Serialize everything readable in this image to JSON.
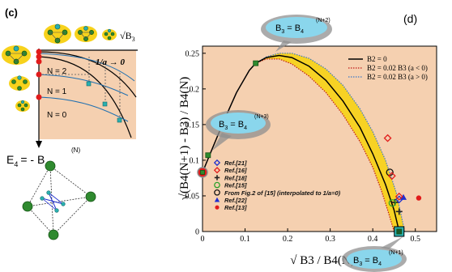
{
  "panel_c": {
    "label": "(c)",
    "top_label_root": "B",
    "top_label_sub": "3",
    "inv_a_label": "1/a → 0",
    "level_labels": [
      "N = 2",
      "N = 1",
      "N = 0"
    ],
    "energy_label": "E",
    "energy_sub": "4",
    "energy_rhs": "= - B",
    "energy_rhs_sub": "4",
    "energy_rhs_sup": "(N)"
  },
  "panel_d": {
    "label": "(d)",
    "callout_top": {
      "text": "B",
      "sub": "3",
      "eq": " = B",
      "sub2": "4",
      "sup": "(N+2)"
    },
    "callout_left": {
      "text": "B",
      "sub": "3",
      "eq": " = B",
      "sub2": "4",
      "sup": "(N+3)"
    },
    "callout_bottom": {
      "text": "B",
      "sub": "3",
      "eq": " = B",
      "sub2": "4",
      "sup": "(N+1)"
    }
  },
  "chart_data": {
    "type": "line",
    "xlabel": "√ B3 / B4(N)",
    "ylabel": "√(B4(N+1) - B3) / B4(N)",
    "xlim": [
      0,
      0.55
    ],
    "ylim": [
      0,
      0.26
    ],
    "xticks": [
      "0",
      "0.1",
      "0.2",
      "0.3",
      "0.4",
      "0.5"
    ],
    "yticks": [
      "0",
      "0.05",
      "0.1",
      "0.15",
      "0.2",
      "0.25"
    ],
    "legend_lines": [
      "B2 = 0",
      "B2 = 0.02 B3 (a < 0)",
      "B2 = 0.02 B3 (a > 0)"
    ],
    "curve_black": {
      "x": [
        0,
        0.02,
        0.05,
        0.08,
        0.11,
        0.125,
        0.15,
        0.18,
        0.21,
        0.25,
        0.29,
        0.33,
        0.37,
        0.4,
        0.43,
        0.45,
        0.462
      ],
      "y": [
        0.083,
        0.112,
        0.155,
        0.195,
        0.226,
        0.236,
        0.244,
        0.247,
        0.244,
        0.232,
        0.212,
        0.183,
        0.146,
        0.109,
        0.066,
        0.03,
        0.0
      ]
    },
    "curve_red_dotted": {
      "x": [
        0,
        0.02,
        0.05,
        0.08,
        0.11,
        0.125,
        0.15,
        0.18,
        0.21,
        0.25,
        0.29,
        0.33,
        0.37,
        0.4,
        0.42,
        0.435,
        0.45
      ],
      "y": [
        0.083,
        0.112,
        0.155,
        0.195,
        0.226,
        0.236,
        0.242,
        0.242,
        0.235,
        0.218,
        0.195,
        0.164,
        0.126,
        0.09,
        0.058,
        0.03,
        0.0
      ]
    },
    "curve_blue_dotted": {
      "x": [
        0,
        0.02,
        0.05,
        0.08,
        0.11,
        0.125,
        0.15,
        0.18,
        0.21,
        0.25,
        0.29,
        0.33,
        0.37,
        0.4,
        0.43,
        0.455,
        0.475
      ],
      "y": [
        0.083,
        0.112,
        0.155,
        0.195,
        0.226,
        0.236,
        0.245,
        0.25,
        0.25,
        0.243,
        0.228,
        0.205,
        0.172,
        0.14,
        0.1,
        0.055,
        0.0
      ]
    },
    "green_squares": [
      {
        "x": 0.0,
        "y": 0.083
      },
      {
        "x": 0.013,
        "y": 0.107
      },
      {
        "x": 0.125,
        "y": 0.236
      },
      {
        "x": 0.462,
        "y": 0.0
      }
    ],
    "references": [
      {
        "label": "Ref.[21]",
        "marker": "diamond-open",
        "color": "#1f2fd0",
        "x": 0.462,
        "y": 0.045
      },
      {
        "label": "Ref.[16]",
        "marker": "diamond-open",
        "color": "#e11b1b",
        "x": 0.435,
        "y": 0.131
      },
      {
        "label": "Ref.[18]",
        "marker": "plus",
        "color": "#222222",
        "x": 0.452,
        "y": 0.041
      },
      {
        "label": "Ref.[15]",
        "marker": "circle-open",
        "color": "#2ca02c",
        "x": 0.446,
        "y": 0.04
      },
      {
        "label": "From Fig.2 of [15] (interpolated to 1/a=0)",
        "marker": "circle-open",
        "color": "#111111",
        "x": 0.44,
        "y": 0.083
      },
      {
        "label": "Ref.[22]",
        "marker": "triangle",
        "color": "#1f2fd0",
        "x": 0.472,
        "y": 0.048
      },
      {
        "label": "Ref.[13]",
        "marker": "dot",
        "color": "#e11b1b",
        "x": 0.508,
        "y": 0.047
      }
    ],
    "extra_points": [
      {
        "marker": "diamond-open",
        "color": "#e11b1b",
        "x": 0.445,
        "y": 0.078
      },
      {
        "marker": "diamond-open",
        "color": "#e11b1b",
        "x": 0.462,
        "y": 0.049
      },
      {
        "marker": "plus",
        "color": "#222222",
        "x": 0.462,
        "y": 0.028
      }
    ]
  },
  "colors": {
    "background": "#f5d0b0",
    "band": "#f7d21c",
    "green": "#2f8a2f",
    "callout": "#8ad6ec",
    "callout_ring": "#8f8f8f",
    "teal": "#2ab0b0",
    "red": "#e11b1b"
  }
}
